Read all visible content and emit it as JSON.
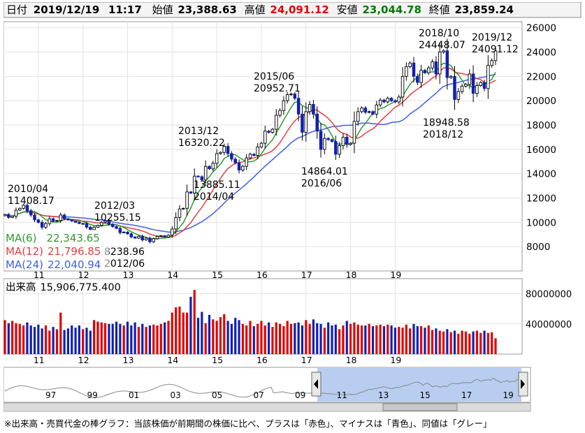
{
  "header": {
    "date_label": "日付",
    "date": "2019/12/19",
    "time": "11:17",
    "open_label": "始値",
    "open": "23,388.63",
    "high_label": "高値",
    "high": "24,091.12",
    "low_label": "安値",
    "low": "23,044.78",
    "close_label": "終値",
    "close": "23,859.24"
  },
  "colors": {
    "up": "#e00000",
    "down": "#1020b0",
    "ma6": "#2e9a2e",
    "ma12": "#e04040",
    "ma24": "#4060e0",
    "high_text": "#e00000",
    "low_text": "#007a00",
    "navigator_fill": "#b8cdf0"
  },
  "legend": {
    "ma6_label": "MA(6)",
    "ma6_value": "22,343.65",
    "ma12_label": "MA(12)",
    "ma12_value": "21,796.85",
    "ma24_label": "MA(24)",
    "ma24_value": "22,040.94"
  },
  "volume_legend": {
    "label": "出来高",
    "value": "15,906,775.400"
  },
  "footnote": "※出来高・売買代金の棒グラフ：当該株価が前期間の株価に比べ、プラスは「赤色」、マイナスは「青色」、同値は「グレー」",
  "navigator": {
    "labels": [
      "97",
      "99",
      "01",
      "03",
      "05",
      "07",
      "09",
      "11",
      "13",
      "15",
      "17",
      "19"
    ]
  },
  "chart_data": [
    {
      "type": "candlestick",
      "title": "",
      "interval": "monthly",
      "x_ticks": [
        "11",
        "12",
        "13",
        "14",
        "15",
        "16",
        "17",
        "18",
        "19"
      ],
      "y_ticks": [
        8000,
        10000,
        12000,
        14000,
        16000,
        18000,
        20000,
        22000,
        24000,
        26000
      ],
      "ylim": [
        6000,
        26500
      ],
      "grid": true,
      "legend_position": "bottom-left",
      "series": [
        {
          "name": "MA(6)",
          "last": 22343.65
        },
        {
          "name": "MA(12)",
          "last": 21796.85
        },
        {
          "name": "MA(24)",
          "last": 22040.94
        }
      ],
      "annotations": [
        {
          "date": "2010/04",
          "value": "11408.17"
        },
        {
          "date": "2012/03",
          "value": "10255.15"
        },
        {
          "date": "2012/06",
          "value": "8238.96"
        },
        {
          "date": "2013/12",
          "value": "16320.22"
        },
        {
          "date": "2014/04",
          "value": "13885.11"
        },
        {
          "date": "2015/06",
          "value": "20952.71"
        },
        {
          "date": "2016/06",
          "value": "14864.01"
        },
        {
          "date": "2018/10",
          "value": "24448.07"
        },
        {
          "date": "2018/12",
          "value": "18948.58"
        },
        {
          "date": "2019/12",
          "value": "24091.12"
        }
      ],
      "closes": [
        10650,
        10400,
        10500,
        11000,
        11150,
        11400,
        10950,
        10600,
        10200,
        10000,
        9600,
        9900,
        10300,
        10100,
        10150,
        10600,
        10300,
        10200,
        10100,
        10000,
        9900,
        9900,
        9600,
        9400,
        9600,
        9750,
        10000,
        10100,
        9850,
        9650,
        9500,
        9150,
        9200,
        9050,
        8800,
        8700,
        8850,
        8550,
        8700,
        8400,
        8650,
        8850,
        8900,
        8800,
        8950,
        9450,
        10400,
        11100,
        11150,
        12500,
        12400,
        13800,
        13750,
        13500,
        14600,
        14400,
        14850,
        15650,
        15750,
        16250,
        15650,
        15200,
        14900,
        14300,
        14600,
        15300,
        15600,
        15500,
        16200,
        16500,
        17500,
        17400,
        17650,
        18800,
        19200,
        20000,
        20500,
        20550,
        20200,
        18900,
        17400,
        19100,
        19700,
        18900,
        17500,
        16000,
        16900,
        16800,
        16650,
        15600,
        16300,
        17000,
        16400,
        16500,
        18300,
        19100,
        19400,
        19050,
        19100,
        18900,
        19650,
        20050,
        19900,
        20200,
        20000,
        19900,
        20300,
        22000,
        22800,
        23100,
        22000,
        21500,
        22500,
        22300,
        22700,
        23200,
        22200,
        24000,
        24100,
        21900,
        22000,
        20100,
        20750,
        21200,
        21350,
        22200,
        20600,
        21250,
        21500,
        21000,
        22900,
        23300,
        24100
      ],
      "volumes": [
        45,
        41,
        44,
        41,
        40,
        38,
        42,
        38,
        36,
        39,
        34,
        38,
        31,
        36,
        33,
        55,
        32,
        34,
        38,
        35,
        38,
        33,
        35,
        31,
        45,
        43,
        42,
        41,
        40,
        40,
        43,
        40,
        38,
        43,
        38,
        42,
        36,
        40,
        36,
        38,
        39,
        38,
        40,
        42,
        44,
        55,
        62,
        63,
        55,
        55,
        76,
        85,
        48,
        56,
        41,
        52,
        46,
        44,
        49,
        53,
        44,
        40,
        48,
        45,
        40,
        38,
        44,
        37,
        40,
        44,
        38,
        42,
        36,
        42,
        40,
        37,
        44,
        40,
        41,
        42,
        38,
        45,
        40,
        46,
        41,
        40,
        35,
        42,
        38,
        39,
        33,
        38,
        44,
        40,
        42,
        39,
        38,
        38,
        40,
        37,
        38,
        39,
        37,
        39,
        38,
        35,
        36,
        35,
        39,
        34,
        40,
        37,
        37,
        35,
        38,
        32,
        34,
        31,
        30,
        33,
        29,
        31,
        27,
        31,
        30,
        27,
        30,
        31,
        28,
        31,
        28,
        29,
        21
      ]
    }
  ]
}
